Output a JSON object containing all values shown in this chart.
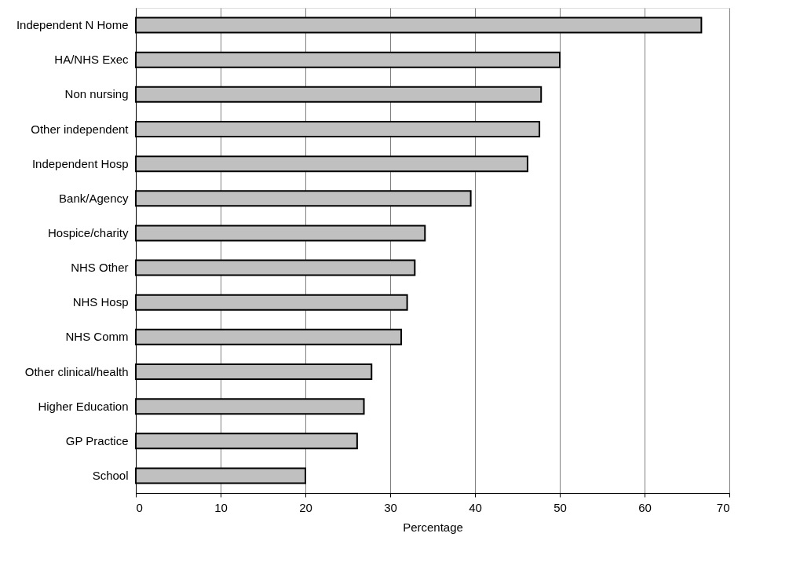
{
  "chart_data": {
    "type": "bar",
    "orientation": "horizontal",
    "xlabel": "Percentage",
    "categories": [
      "Independent N Home",
      "HA/NHS Exec",
      "Non nursing",
      "Other independent",
      "Independent Hosp",
      "Bank/Agency",
      "Hospice/charity",
      "NHS Other",
      "NHS Hosp",
      "NHS Comm",
      "Other clinical/health",
      "Higher Education",
      "GP Practice",
      "School"
    ],
    "values": [
      66.7,
      50.0,
      47.8,
      47.6,
      46.2,
      39.5,
      34.1,
      32.9,
      32.0,
      31.3,
      27.8,
      26.9,
      26.1,
      20.0
    ],
    "color": "#c0c0c0",
    "xlim": [
      0,
      70
    ],
    "xticks": [
      0,
      10,
      20,
      30,
      40,
      50,
      60,
      70
    ],
    "grid": "x"
  }
}
